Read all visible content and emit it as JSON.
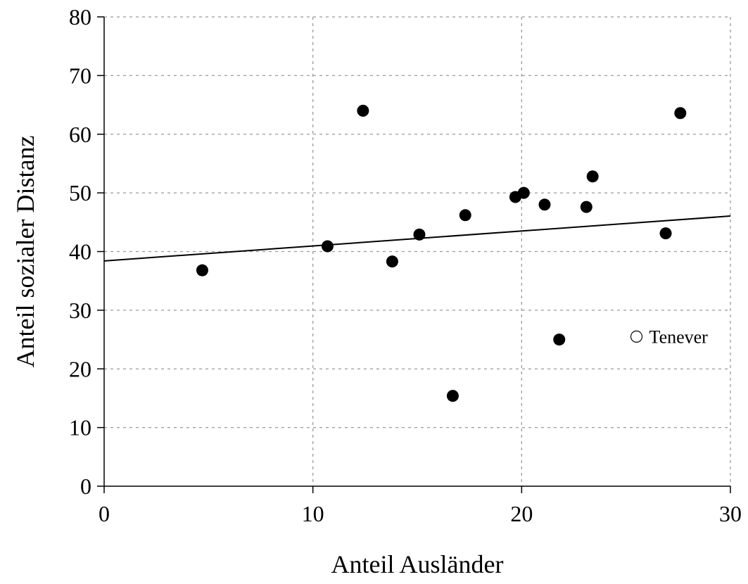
{
  "chart_data": {
    "type": "scatter",
    "title": "",
    "xlabel": "Anteil Ausländer",
    "ylabel": "Anteil sozialer Distanz",
    "xlim": [
      0,
      30
    ],
    "ylim": [
      0,
      80
    ],
    "xticks": [
      0,
      10,
      20,
      30
    ],
    "yticks": [
      0,
      10,
      20,
      30,
      40,
      50,
      60,
      70,
      80
    ],
    "grid": true,
    "points": [
      {
        "x": 4.7,
        "y": 36.8
      },
      {
        "x": 10.7,
        "y": 40.9
      },
      {
        "x": 12.4,
        "y": 64.0
      },
      {
        "x": 13.8,
        "y": 38.3
      },
      {
        "x": 15.1,
        "y": 42.9
      },
      {
        "x": 16.7,
        "y": 15.4
      },
      {
        "x": 17.3,
        "y": 46.2
      },
      {
        "x": 19.7,
        "y": 49.3
      },
      {
        "x": 20.1,
        "y": 50.0
      },
      {
        "x": 21.1,
        "y": 48.0
      },
      {
        "x": 21.8,
        "y": 25.0
      },
      {
        "x": 23.1,
        "y": 47.6
      },
      {
        "x": 23.4,
        "y": 52.8
      },
      {
        "x": 26.9,
        "y": 43.1
      },
      {
        "x": 27.6,
        "y": 63.6
      }
    ],
    "highlighted_points": [
      {
        "x": 25.5,
        "y": 25.5,
        "label": "Tenever",
        "marker": "open-circle"
      }
    ],
    "regression_line": {
      "intercept": 38.4,
      "slope": 0.255
    }
  }
}
